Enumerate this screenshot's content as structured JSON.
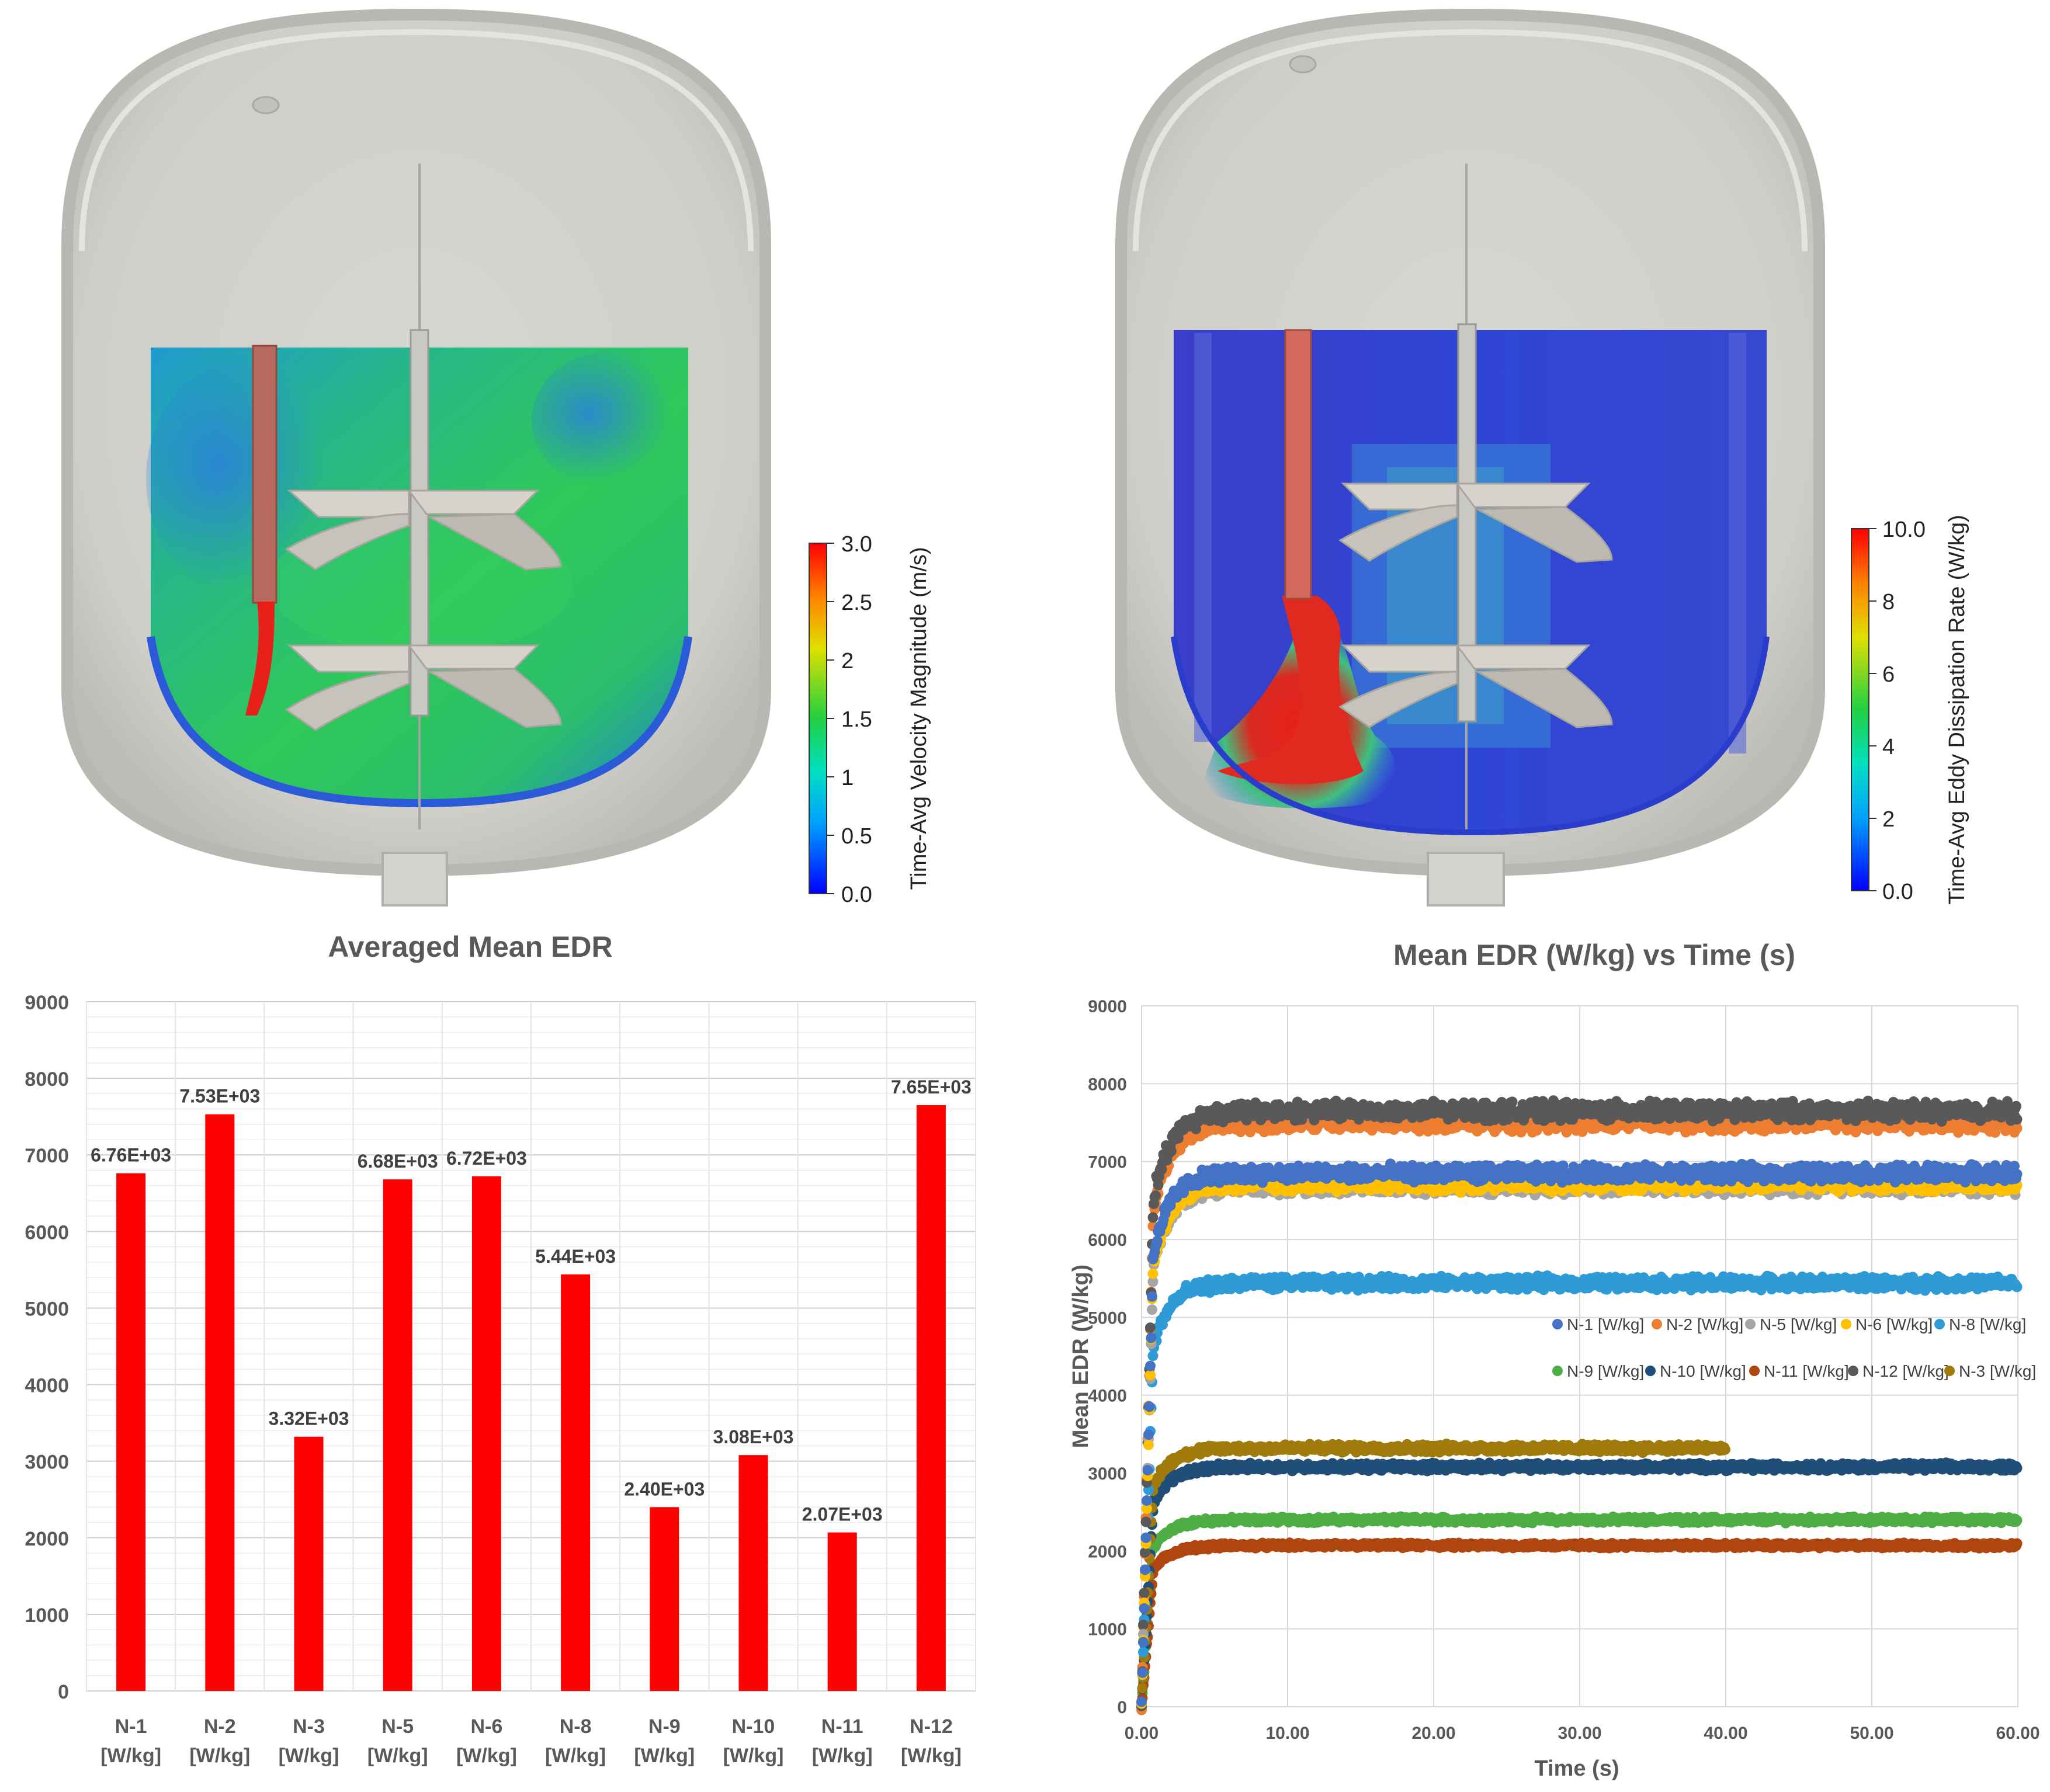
{
  "left_view": {
    "colorbar": {
      "title": "Time-Avg Velocity Magnitude (m/s)",
      "ticks": [
        "3.0",
        "2.5",
        "2",
        "1.5",
        "1",
        "0.5",
        "0.0"
      ]
    }
  },
  "right_view": {
    "colorbar": {
      "title": "Time-Avg Eddy Dissipation Rate (W/kg)",
      "ticks": [
        "10.0",
        "8",
        "6",
        "4",
        "2",
        "0.0"
      ]
    }
  },
  "chart_data": [
    {
      "type": "bar",
      "title": "Averaged Mean EDR",
      "categories": [
        "N-1",
        "N-2",
        "N-3",
        "N-5",
        "N-6",
        "N-8",
        "N-9",
        "N-10",
        "N-11",
        "N-12"
      ],
      "category_unit": "[W/kg]",
      "values": [
        6760,
        7530,
        3320,
        6680,
        6720,
        5440,
        2400,
        3080,
        2070,
        7650
      ],
      "data_labels": [
        "6.76E+03",
        "7.53E+03",
        "3.32E+03",
        "6.68E+03",
        "6.72E+03",
        "5.44E+03",
        "2.40E+03",
        "3.08E+03",
        "2.07E+03",
        "7.65E+03"
      ],
      "ylim": [
        0,
        9000
      ],
      "yticks": [
        "0",
        "1000",
        "2000",
        "3000",
        "4000",
        "5000",
        "6000",
        "7000",
        "8000",
        "9000"
      ],
      "xlabel": "",
      "ylabel": "",
      "bar_color": "#ff0000",
      "grid": true
    },
    {
      "type": "scatter",
      "title": "Mean EDR (W/kg) vs Time (s)",
      "xlabel": "Time (s)",
      "ylabel": "Mean EDR (W/kg)",
      "xlim": [
        0,
        60
      ],
      "ylim": [
        0,
        9000
      ],
      "xticks": [
        "0.00",
        "10.00",
        "20.00",
        "30.00",
        "40.00",
        "50.00",
        "60.00"
      ],
      "yticks": [
        "0",
        "1000",
        "2000",
        "3000",
        "4000",
        "5000",
        "6000",
        "7000",
        "8000",
        "9000"
      ],
      "legend_position": "center-right",
      "series": [
        {
          "name": "N-1 [W/kg]",
          "color": "#4472c4",
          "plateau": 6850,
          "t_end": 60
        },
        {
          "name": "N-2 [W/kg]",
          "color": "#ed7d31",
          "plateau": 7500,
          "t_end": 60
        },
        {
          "name": "N-5  [W/kg]",
          "color": "#a5a5a5",
          "plateau": 6680,
          "t_end": 60
        },
        {
          "name": "N-6  [W/kg]",
          "color": "#ffc000",
          "plateau": 6720,
          "t_end": 60
        },
        {
          "name": "N-8  [W/kg]",
          "color": "#2e9ad6",
          "plateau": 5440,
          "t_end": 60
        },
        {
          "name": "N-9  [W/kg]",
          "color": "#4fad45",
          "plateau": 2400,
          "t_end": 60
        },
        {
          "name": "N-10 [W/kg]",
          "color": "#1f4e79",
          "plateau": 3080,
          "t_end": 60
        },
        {
          "name": "N-11 [W/kg]",
          "color": "#b0460f",
          "plateau": 2070,
          "t_end": 60
        },
        {
          "name": "N-12 [W/kg]",
          "color": "#595959",
          "plateau": 7650,
          "t_end": 60
        },
        {
          "name": "N-3 [W/kg]",
          "color": "#a07a0a",
          "plateau": 3320,
          "t_end": 40
        }
      ]
    }
  ]
}
